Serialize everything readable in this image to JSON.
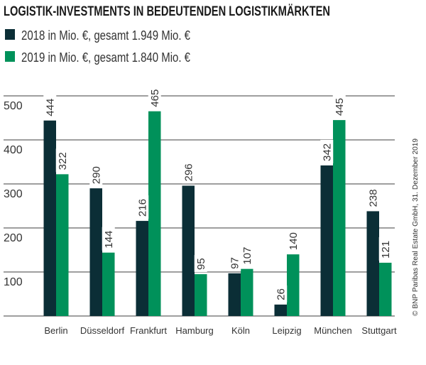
{
  "chart_data": {
    "type": "bar",
    "title": "LOGISTIK-INVESTMENTS IN BEDEUTENDEN LOGISTIKMÄRKTEN",
    "categories": [
      "Berlin",
      "Düsseldorf",
      "Frankfurt",
      "Hamburg",
      "Köln",
      "Leipzig",
      "München",
      "Stuttgart"
    ],
    "series": [
      {
        "name": "2018 in Mio. €, gesamt 1.949 Mio. €",
        "color": "#0b2e36",
        "values": [
          444,
          290,
          216,
          296,
          97,
          26,
          342,
          238
        ]
      },
      {
        "name": "2019 in Mio. €, gesamt 1.840 Mio. €",
        "color": "#00915a",
        "values": [
          322,
          144,
          465,
          95,
          107,
          140,
          445,
          121
        ]
      }
    ],
    "yticks": [
      100,
      200,
      300,
      400,
      500
    ],
    "ylim": [
      0,
      500
    ],
    "grid": true,
    "legend_position": "top-left",
    "source": "© BNP Paribas Real Estate GmbH, 31. Dezember 2019"
  }
}
